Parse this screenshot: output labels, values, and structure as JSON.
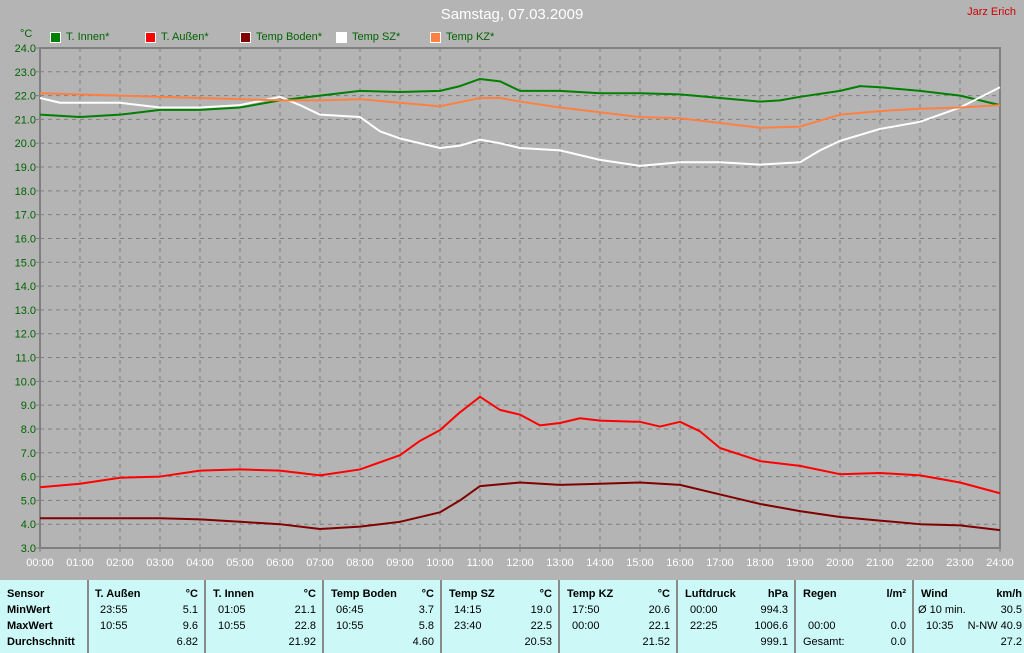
{
  "title": "Samstag, 07.03.2009",
  "author": "Jarz Erich",
  "chart_data": {
    "type": "line",
    "ylabel": "°C",
    "ylim": [
      3.0,
      24.0
    ],
    "yticks": [
      "3.0",
      "4.0",
      "5.0",
      "6.0",
      "7.0",
      "8.0",
      "9.0",
      "10.0",
      "11.0",
      "12.0",
      "13.0",
      "14.0",
      "15.0",
      "16.0",
      "17.0",
      "18.0",
      "19.0",
      "20.0",
      "21.0",
      "22.0",
      "23.0",
      "24.0"
    ],
    "xticks": [
      "00:00",
      "01:00",
      "02:00",
      "03:00",
      "04:00",
      "05:00",
      "06:00",
      "07:00",
      "08:00",
      "09:00",
      "10:00",
      "11:00",
      "12:00",
      "13:00",
      "14:00",
      "15:00",
      "16:00",
      "17:00",
      "18:00",
      "19:00",
      "20:00",
      "21:00",
      "22:00",
      "23:00",
      "24:00"
    ],
    "grid": true,
    "legend": "top",
    "series": [
      {
        "name": "T. Innen*",
        "color": "#008000",
        "points": [
          [
            0,
            21.2
          ],
          [
            1,
            21.1
          ],
          [
            2,
            21.2
          ],
          [
            3,
            21.4
          ],
          [
            4,
            21.4
          ],
          [
            5,
            21.5
          ],
          [
            6,
            21.8
          ],
          [
            7,
            22.0
          ],
          [
            8,
            22.2
          ],
          [
            9,
            22.15
          ],
          [
            10,
            22.2
          ],
          [
            10.5,
            22.4
          ],
          [
            11,
            22.7
          ],
          [
            11.5,
            22.6
          ],
          [
            12,
            22.2
          ],
          [
            13,
            22.2
          ],
          [
            14,
            22.1
          ],
          [
            15,
            22.1
          ],
          [
            16,
            22.05
          ],
          [
            17,
            21.9
          ],
          [
            18,
            21.75
          ],
          [
            18.5,
            21.8
          ],
          [
            19,
            21.95
          ],
          [
            20,
            22.2
          ],
          [
            20.5,
            22.4
          ],
          [
            21,
            22.35
          ],
          [
            22,
            22.2
          ],
          [
            23,
            22.0
          ],
          [
            24,
            21.6
          ]
        ]
      },
      {
        "name": "T. Außen*",
        "color": "#ff0000",
        "points": [
          [
            0,
            5.55
          ],
          [
            1,
            5.7
          ],
          [
            2,
            5.95
          ],
          [
            3,
            6.0
          ],
          [
            4,
            6.25
          ],
          [
            5,
            6.3
          ],
          [
            6,
            6.25
          ],
          [
            7,
            6.05
          ],
          [
            8,
            6.3
          ],
          [
            9,
            6.9
          ],
          [
            9.5,
            7.5
          ],
          [
            10,
            7.95
          ],
          [
            10.5,
            8.7
          ],
          [
            11,
            9.35
          ],
          [
            11.5,
            8.8
          ],
          [
            12,
            8.6
          ],
          [
            12.5,
            8.15
          ],
          [
            13,
            8.25
          ],
          [
            13.5,
            8.45
          ],
          [
            14,
            8.35
          ],
          [
            15,
            8.3
          ],
          [
            15.5,
            8.1
          ],
          [
            16,
            8.3
          ],
          [
            16.5,
            7.9
          ],
          [
            17,
            7.2
          ],
          [
            18,
            6.65
          ],
          [
            19,
            6.45
          ],
          [
            20,
            6.1
          ],
          [
            21,
            6.15
          ],
          [
            22,
            6.05
          ],
          [
            23,
            5.75
          ],
          [
            24,
            5.3
          ]
        ]
      },
      {
        "name": "Temp Boden*",
        "color": "#800000",
        "points": [
          [
            0,
            4.25
          ],
          [
            3,
            4.25
          ],
          [
            4,
            4.2
          ],
          [
            5,
            4.1
          ],
          [
            6,
            4.0
          ],
          [
            7,
            3.8
          ],
          [
            8,
            3.9
          ],
          [
            9,
            4.1
          ],
          [
            10,
            4.5
          ],
          [
            10.5,
            5.0
          ],
          [
            11,
            5.6
          ],
          [
            12,
            5.75
          ],
          [
            13,
            5.65
          ],
          [
            14,
            5.7
          ],
          [
            15,
            5.75
          ],
          [
            16,
            5.65
          ],
          [
            17,
            5.25
          ],
          [
            18,
            4.85
          ],
          [
            19,
            4.55
          ],
          [
            20,
            4.3
          ],
          [
            21,
            4.15
          ],
          [
            22,
            4.0
          ],
          [
            23,
            3.95
          ],
          [
            24,
            3.75
          ]
        ]
      },
      {
        "name": "Temp SZ*",
        "color": "#ffffff",
        "points": [
          [
            0,
            21.9
          ],
          [
            0.5,
            21.7
          ],
          [
            2,
            21.7
          ],
          [
            3,
            21.5
          ],
          [
            4,
            21.5
          ],
          [
            5,
            21.6
          ],
          [
            6,
            21.95
          ],
          [
            6.5,
            21.6
          ],
          [
            7,
            21.2
          ],
          [
            8,
            21.1
          ],
          [
            8.5,
            20.5
          ],
          [
            9,
            20.2
          ],
          [
            9.5,
            20.0
          ],
          [
            10,
            19.8
          ],
          [
            10.5,
            19.9
          ],
          [
            11,
            20.15
          ],
          [
            11.5,
            20.0
          ],
          [
            12,
            19.8
          ],
          [
            13,
            19.7
          ],
          [
            14,
            19.3
          ],
          [
            15,
            19.05
          ],
          [
            16,
            19.2
          ],
          [
            17,
            19.2
          ],
          [
            18,
            19.1
          ],
          [
            19,
            19.2
          ],
          [
            19.5,
            19.7
          ],
          [
            20,
            20.1
          ],
          [
            21,
            20.6
          ],
          [
            22,
            20.9
          ],
          [
            23,
            21.5
          ],
          [
            24,
            22.35
          ]
        ]
      },
      {
        "name": "Temp KZ*",
        "color": "#ff8040",
        "points": [
          [
            0,
            22.1
          ],
          [
            2,
            22.0
          ],
          [
            4,
            21.9
          ],
          [
            6,
            21.8
          ],
          [
            7,
            21.8
          ],
          [
            8,
            21.85
          ],
          [
            9,
            21.7
          ],
          [
            10,
            21.55
          ],
          [
            11,
            21.9
          ],
          [
            11.5,
            21.9
          ],
          [
            12,
            21.75
          ],
          [
            13,
            21.5
          ],
          [
            14,
            21.3
          ],
          [
            15,
            21.1
          ],
          [
            16,
            21.05
          ],
          [
            17,
            20.85
          ],
          [
            18,
            20.65
          ],
          [
            19,
            20.7
          ],
          [
            20,
            21.2
          ],
          [
            21,
            21.35
          ],
          [
            22,
            21.45
          ],
          [
            23,
            21.5
          ],
          [
            24,
            21.6
          ]
        ]
      }
    ]
  },
  "table": {
    "row_labels": [
      "Sensor",
      "MinWert",
      "MaxWert",
      "Durchschnitt"
    ],
    "columns": [
      {
        "name": "T. Außen",
        "unit": "°C",
        "min_time": "23:55",
        "min": "5.1",
        "max_time": "10:55",
        "max": "9.6",
        "avg_label": "",
        "avg": "6.82"
      },
      {
        "name": "T. Innen",
        "unit": "°C",
        "min_time": "01:05",
        "min": "21.1",
        "max_time": "10:55",
        "max": "22.8",
        "avg_label": "",
        "avg": "21.92"
      },
      {
        "name": "Temp Boden",
        "unit": "°C",
        "min_time": "06:45",
        "min": "3.7",
        "max_time": "10:55",
        "max": "5.8",
        "avg_label": "",
        "avg": "4.60"
      },
      {
        "name": "Temp SZ",
        "unit": "°C",
        "min_time": "14:15",
        "min": "19.0",
        "max_time": "23:40",
        "max": "22.5",
        "avg_label": "",
        "avg": "20.53"
      },
      {
        "name": "Temp KZ",
        "unit": "°C",
        "min_time": "17:50",
        "min": "20.6",
        "max_time": "00:00",
        "max": "22.1",
        "avg_label": "",
        "avg": "21.52"
      },
      {
        "name": "Luftdruck",
        "unit": "hPa",
        "min_time": "00:00",
        "min": "994.3",
        "max_time": "22:25",
        "max": "1006.6",
        "avg_label": "",
        "avg": "999.1"
      },
      {
        "name": "Regen",
        "unit": "l/m²",
        "min_time": "",
        "min": "",
        "max_time": "00:00",
        "max": "0.0",
        "avg_label": "Gesamt:",
        "avg": "0.0"
      },
      {
        "name": "Wind",
        "unit": "km/h",
        "min_time": "Ø 10 min.",
        "min": "30.5",
        "max_time": "10:35",
        "max": "N-NW 40.9",
        "avg_label": "",
        "avg": "27.2"
      }
    ]
  }
}
